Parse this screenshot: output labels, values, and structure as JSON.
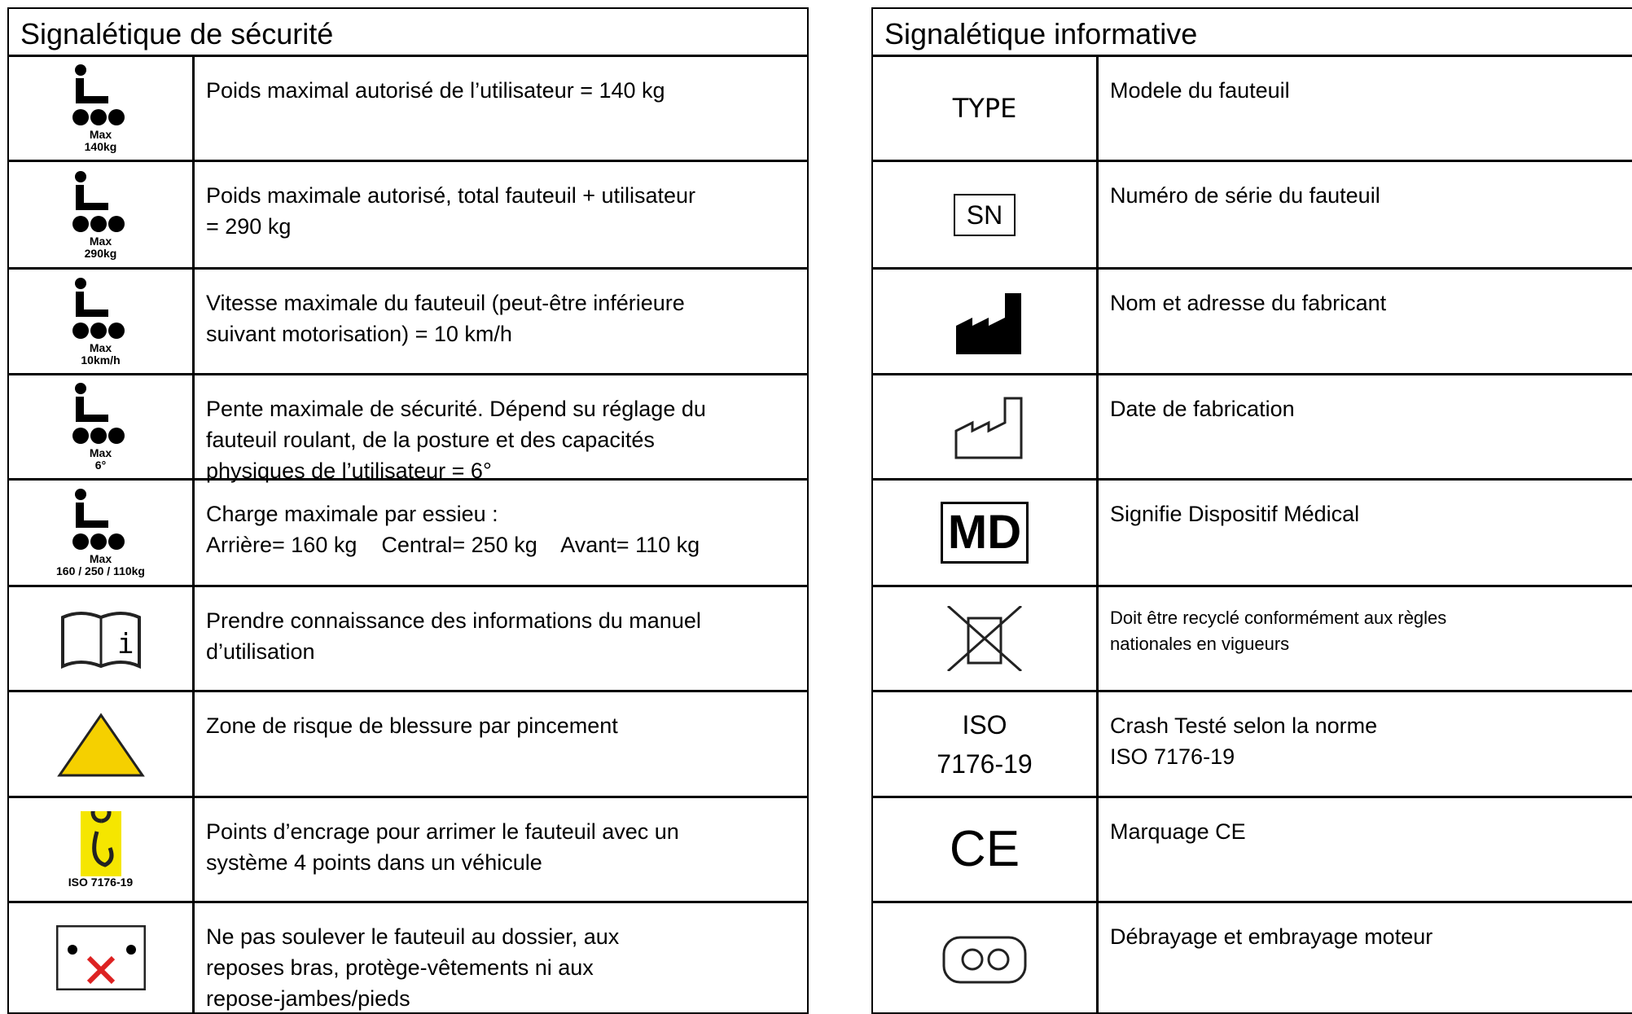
{
  "safety": {
    "title": "Signalétique de sécurité",
    "rows": [
      {
        "icon_text": [
          "Max",
          "140kg"
        ],
        "text": [
          "Poids maximal autorisé de l’utilisateur = 140 kg"
        ]
      },
      {
        "icon_text": [
          "Max",
          "290kg"
        ],
        "text": [
          "Poids maximale autorisé, total fauteuil + utilisateur",
          "= 290 kg"
        ]
      },
      {
        "icon_text": [
          "Max",
          "10km/h"
        ],
        "text": [
          "Vitesse maximale du fauteuil (peut-être inférieure",
          "suivant motorisation) = 10 km/h"
        ]
      },
      {
        "icon_text": [
          "Max",
          "6°"
        ],
        "text": [
          "Pente maximale de sécurité. Dépend su réglage du",
          "fauteuil roulant, de la posture et des capacités",
          "physiques de l’utilisateur = 6°"
        ]
      },
      {
        "icon_text": [
          "Max",
          "160 / 250 / 110kg"
        ],
        "text": [
          "Charge maximale par essieu :",
          "Arrière= 160 kg    Central= 250 kg    Avant= 110 kg"
        ]
      },
      {
        "text": [
          "Prendre connaissance des informations du manuel",
          "d’utilisation"
        ]
      },
      {
        "text": [
          "Zone de risque de blessure par pincement"
        ]
      },
      {
        "icon_text": [
          "ISO 7176-19"
        ],
        "text": [
          "Points d’encrage pour arrimer le fauteuil avec un",
          "système 4 points dans un véhicule"
        ]
      },
      {
        "text": [
          "Ne pas soulever le fauteuil au dossier, aux",
          "reposes bras, protège-vêtements ni aux",
          "repose-jambes/pieds"
        ]
      }
    ]
  },
  "info": {
    "title": "Signalétique informative",
    "rows": [
      {
        "icon_text": [
          "TYPE"
        ],
        "text": [
          "Modele du fauteuil"
        ]
      },
      {
        "icon_text": [
          "SN"
        ],
        "text": [
          "Numéro de série du fauteuil"
        ]
      },
      {
        "text": [
          "Nom et adresse du fabricant"
        ]
      },
      {
        "text": [
          "Date de fabrication"
        ]
      },
      {
        "icon_text": [
          "MD"
        ],
        "text": [
          "Signifie Dispositif Médical"
        ]
      },
      {
        "text": [
          "Doit être recyclé conformément aux règles",
          "nationales en vigueurs"
        ]
      },
      {
        "icon_text": [
          "ISO",
          "7176-19"
        ],
        "text": [
          "Crash Testé selon la norme",
          "ISO 7176-19"
        ]
      },
      {
        "icon_text": [
          "CE"
        ],
        "text": [
          "Marquage CE"
        ]
      },
      {
        "text": [
          "Débrayage et embrayage moteur"
        ]
      }
    ]
  }
}
